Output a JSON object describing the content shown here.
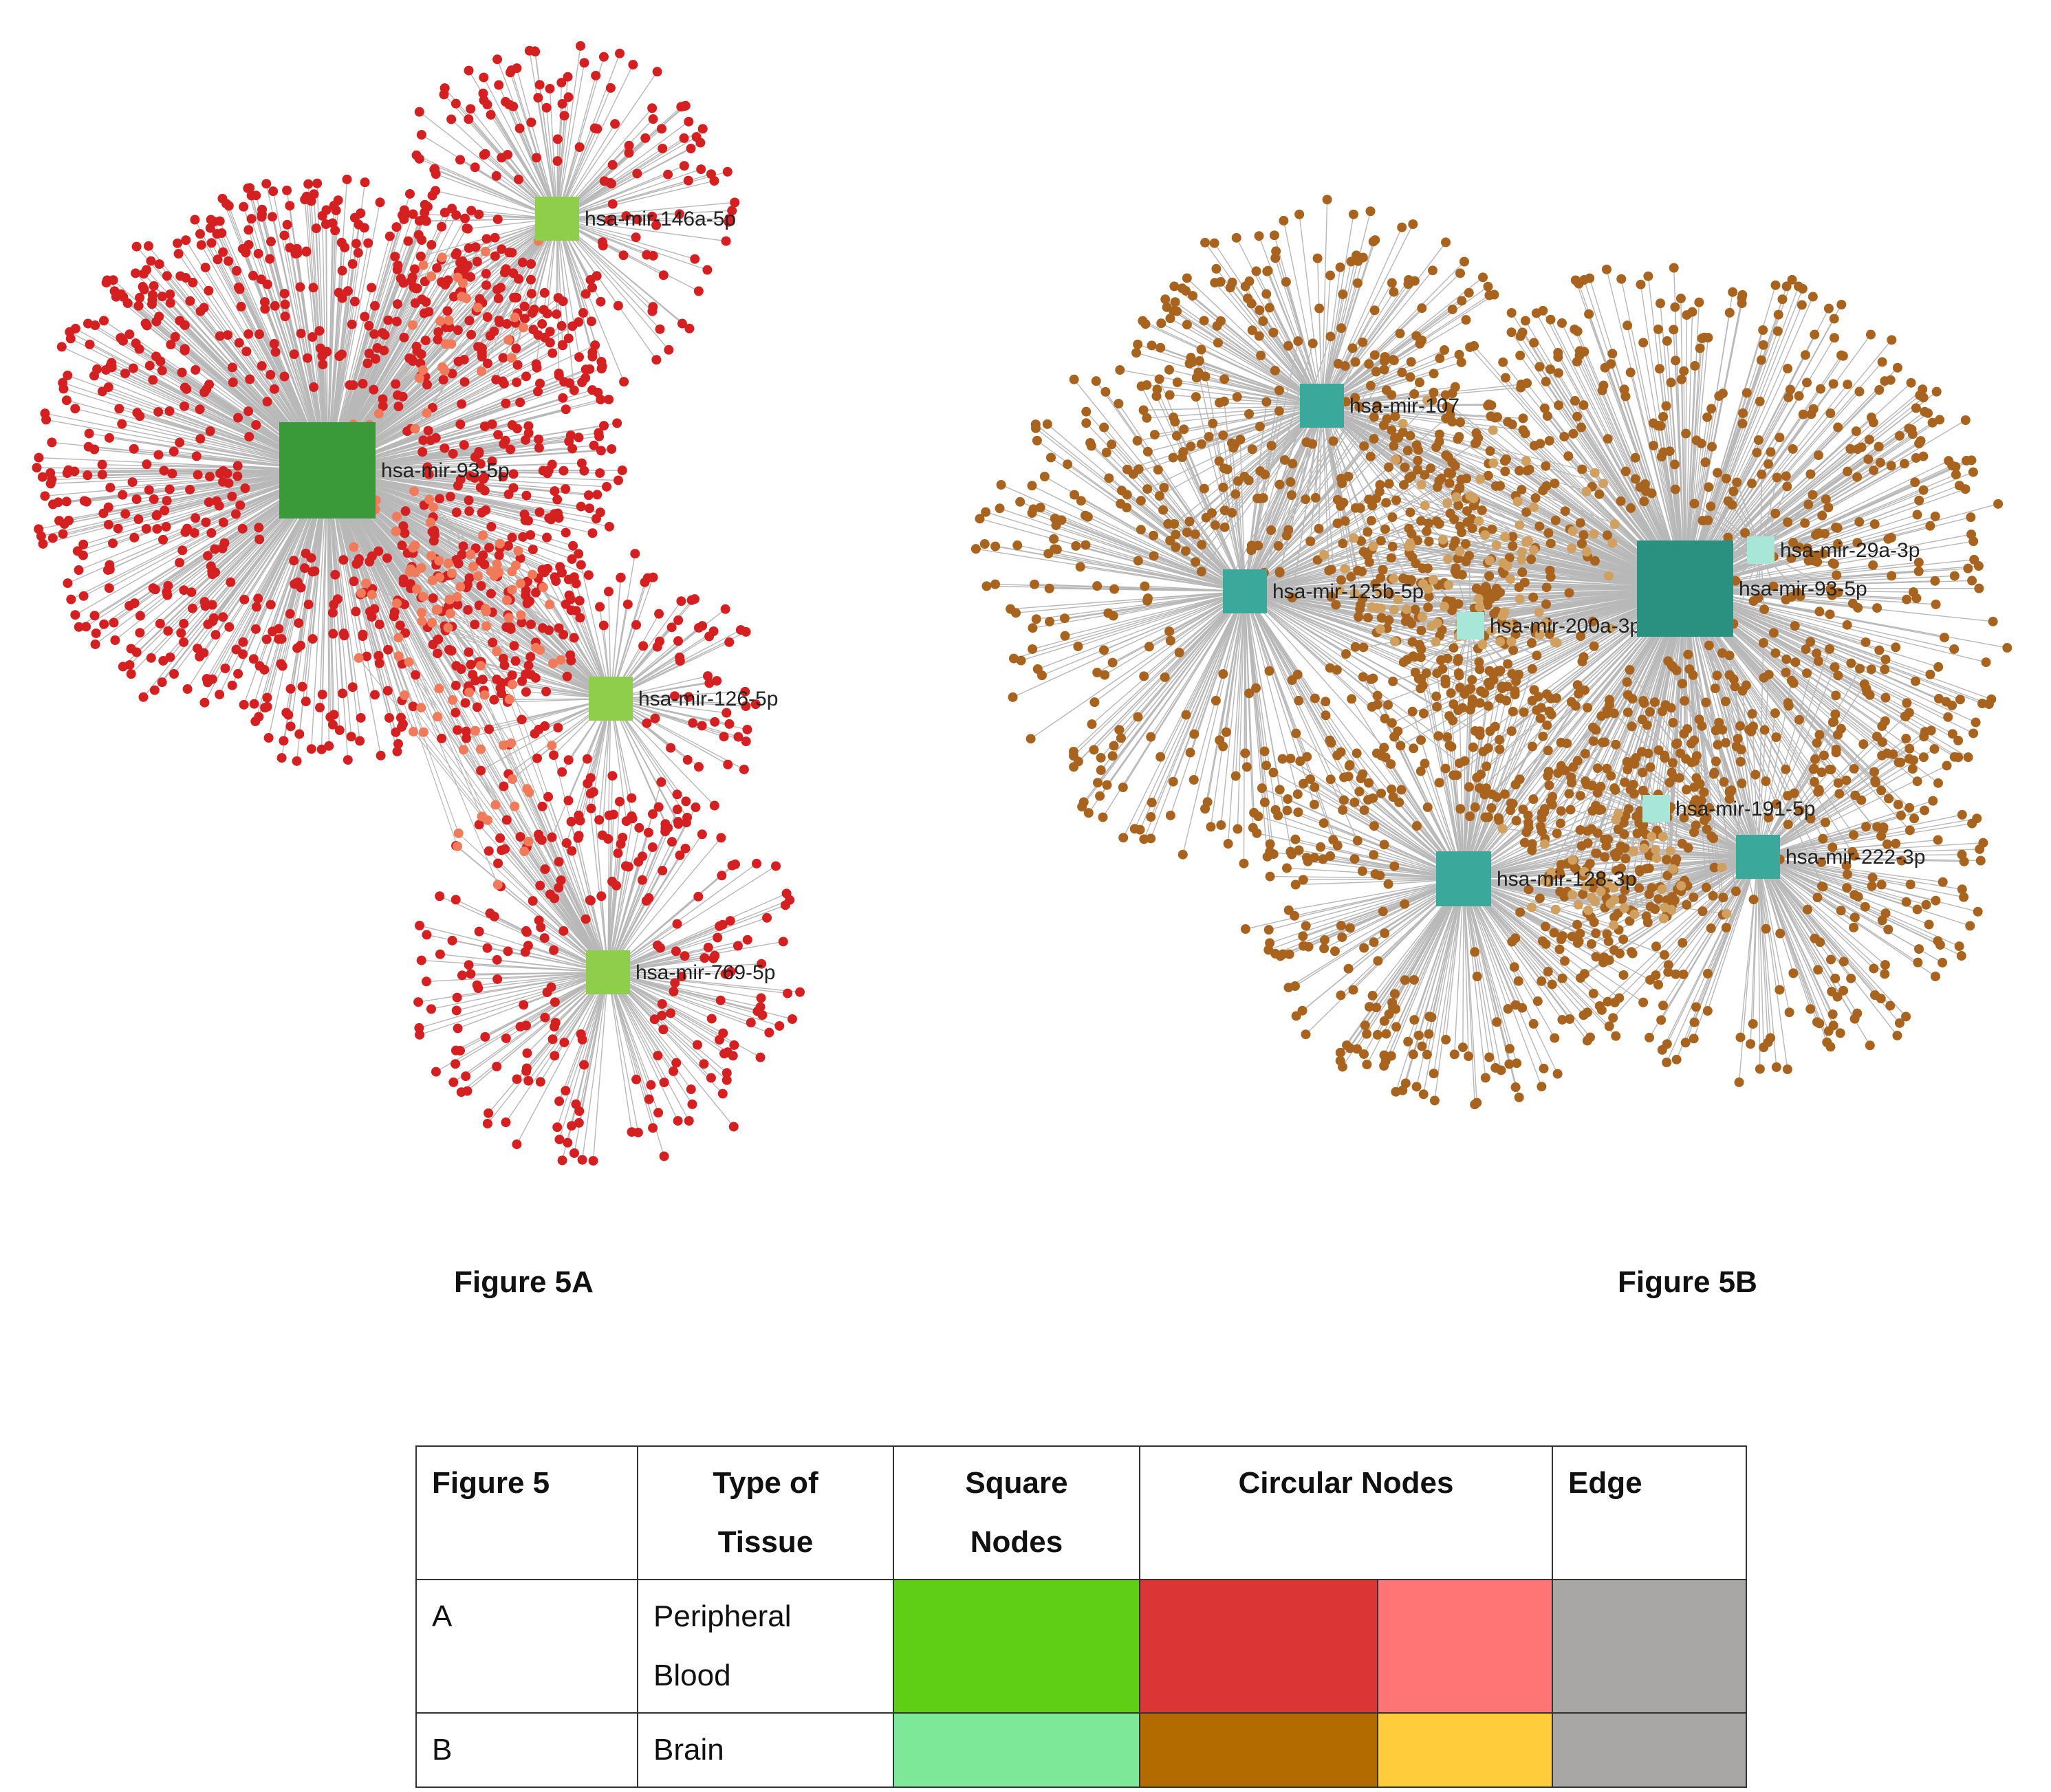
{
  "figure_a": {
    "caption": "Figure 5A",
    "hubs": [
      {
        "id": "a1",
        "label": "hsa-mir-146a-5p",
        "size": "small",
        "targets": 180
      },
      {
        "id": "a2",
        "label": "hsa-mir-93-5p",
        "size": "large",
        "targets": 900
      },
      {
        "id": "a3",
        "label": "hsa-mir-126-5p",
        "size": "small",
        "targets": 130
      },
      {
        "id": "a4",
        "label": "hsa-mir-769-5p",
        "size": "small",
        "targets": 230
      }
    ],
    "colors": {
      "square": "#8fce4a",
      "square_large": "#3a9a3a",
      "circle": "#d42020",
      "circle_shared": "#f07a5a",
      "edge": "#b8b8b8"
    }
  },
  "figure_b": {
    "caption": "Figure 5B",
    "hubs": [
      {
        "id": "b1",
        "label": "hsa-mir-107",
        "size": "small",
        "targets": 260
      },
      {
        "id": "b2",
        "label": "hsa-mir-125b-5p",
        "size": "small",
        "targets": 320
      },
      {
        "id": "b3",
        "label": "hsa-mir-200a-3p",
        "size": "tiny",
        "targets": 40
      },
      {
        "id": "b4",
        "label": "hsa-mir-29a-3p",
        "size": "tiny",
        "targets": 40
      },
      {
        "id": "b5",
        "label": "hsa-mir-93-5p",
        "size": "large",
        "targets": 700
      },
      {
        "id": "b6",
        "label": "hsa-mir-191-5p",
        "size": "tiny",
        "targets": 30
      },
      {
        "id": "b7",
        "label": "hsa-mir-128-3p",
        "size": "medium",
        "targets": 330
      },
      {
        "id": "b8",
        "label": "hsa-mir-222-3p",
        "size": "small",
        "targets": 280
      }
    ],
    "colors": {
      "square": "#3aa89a",
      "square_large": "#2a9080",
      "square_tiny": "#a8e6d8",
      "circle": "#a8641e",
      "circle_shared": "#d0a060",
      "edge": "#b8b8b8"
    }
  },
  "legend": {
    "headers": {
      "figure": "Figure 5",
      "tissue_line1": "Type of",
      "tissue_line2": "Tissue",
      "square_line1": "Square",
      "square_line2": "Nodes",
      "circular": "Circular Nodes",
      "edge": "Edge"
    },
    "rows": [
      {
        "figure": "A",
        "tissue_line1": "Peripheral",
        "tissue_line2": "Blood",
        "square_color": "#5ecf14",
        "circle_color_1": "#dc3535",
        "circle_color_2": "#ff7575",
        "edge_color": "#a9a6a6"
      },
      {
        "figure": "B",
        "tissue_line1": "Brain",
        "tissue_line2": "",
        "square_color": "#7de897",
        "circle_color_1": "#b36b00",
        "circle_color_2": "#ffcc3c",
        "edge_color": "#a9a6a6"
      }
    ]
  }
}
